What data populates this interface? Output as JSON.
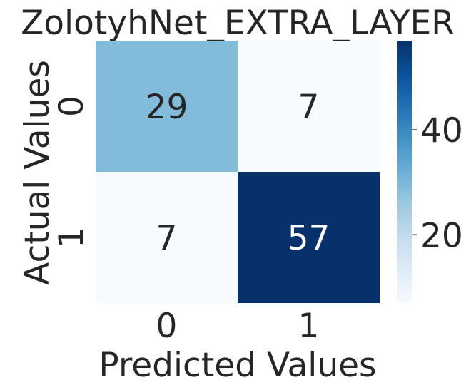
{
  "chart_data": {
    "type": "heatmap",
    "title": "ZolotyhNet_EXTRA_LAYER",
    "xlabel": "Predicted Values",
    "ylabel": "Actual Values",
    "x_categories": [
      "0",
      "1"
    ],
    "y_categories": [
      "0",
      "1"
    ],
    "values": [
      [
        29,
        7
      ],
      [
        7,
        57
      ]
    ],
    "annotations": [
      "29",
      "7",
      "7",
      "57"
    ],
    "colormap": "Blues",
    "colorbar": {
      "ticks": [
        20,
        40
      ],
      "tick_labels": [
        "20",
        "40"
      ],
      "range": [
        7,
        57
      ]
    },
    "grid": false,
    "legend": "none"
  }
}
